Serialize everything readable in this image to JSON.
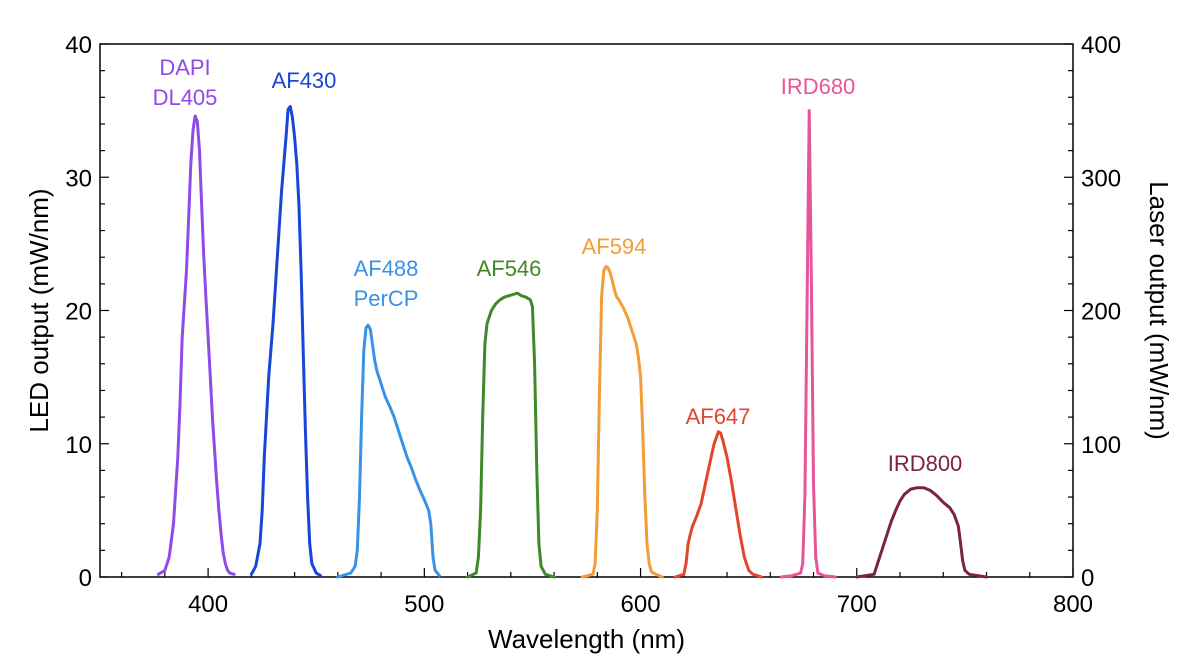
{
  "chart_data": {
    "type": "line",
    "xlabel": "Wavelength (nm)",
    "ylabel_left": "LED output (mW/nm)",
    "ylabel_right": "Laser output (mW/nm)",
    "xlim": [
      350,
      800
    ],
    "ylim_left": [
      0,
      40
    ],
    "ylim_right": [
      0,
      400
    ],
    "x_ticks": [
      "400",
      "500",
      "600",
      "700",
      "800"
    ],
    "y_ticks_left": [
      "0",
      "10",
      "20",
      "30",
      "40"
    ],
    "y_ticks_right": [
      "0",
      "100",
      "200",
      "300",
      "400"
    ],
    "grid": false,
    "legend": "none",
    "series": [
      {
        "name": "DAPI DL405",
        "label_lines": [
          "DAPI",
          "DL405"
        ],
        "color": "#8f4be8",
        "axis": "left",
        "points": [
          [
            377,
            0.2
          ],
          [
            380,
            0.5
          ],
          [
            382,
            1.5
          ],
          [
            384,
            4
          ],
          [
            386,
            9
          ],
          [
            387,
            13
          ],
          [
            388,
            18
          ],
          [
            390,
            23
          ],
          [
            391,
            27
          ],
          [
            392,
            31
          ],
          [
            393,
            33.5
          ],
          [
            394,
            34.6
          ],
          [
            395,
            34.2
          ],
          [
            396,
            32
          ],
          [
            397,
            28
          ],
          [
            398,
            24
          ],
          [
            399,
            21
          ],
          [
            400,
            18
          ],
          [
            401,
            15
          ],
          [
            402,
            12
          ],
          [
            403,
            9.5
          ],
          [
            404,
            7
          ],
          [
            405,
            5
          ],
          [
            406,
            3.2
          ],
          [
            407,
            1.8
          ],
          [
            408,
            1
          ],
          [
            409,
            0.5
          ],
          [
            410,
            0.3
          ],
          [
            412,
            0.2
          ]
        ]
      },
      {
        "name": "AF430",
        "label_lines": [
          "AF430"
        ],
        "color": "#1846d8",
        "axis": "left",
        "points": [
          [
            420,
            0.2
          ],
          [
            422,
            0.8
          ],
          [
            424,
            2.5
          ],
          [
            425,
            5
          ],
          [
            426,
            9
          ],
          [
            427,
            12
          ],
          [
            428,
            15
          ],
          [
            430,
            19
          ],
          [
            432,
            24
          ],
          [
            434,
            29
          ],
          [
            436,
            33
          ],
          [
            437,
            35.1
          ],
          [
            438,
            35.3
          ],
          [
            439,
            34.5
          ],
          [
            440,
            33
          ],
          [
            441,
            31
          ],
          [
            442,
            28
          ],
          [
            443,
            23
          ],
          [
            444,
            17
          ],
          [
            445,
            11
          ],
          [
            446,
            6
          ],
          [
            447,
            2.5
          ],
          [
            448,
            1
          ],
          [
            450,
            0.3
          ],
          [
            452,
            0.1
          ]
        ]
      },
      {
        "name": "AF488 PerCP",
        "label_lines": [
          "AF488",
          "PerCP"
        ],
        "color": "#3a92e6",
        "axis": "left",
        "points": [
          [
            460,
            0
          ],
          [
            466,
            0.3
          ],
          [
            468,
            0.8
          ],
          [
            469,
            2
          ],
          [
            470,
            6
          ],
          [
            471,
            12
          ],
          [
            472,
            17
          ],
          [
            473,
            18.7
          ],
          [
            474,
            18.9
          ],
          [
            475,
            18.6
          ],
          [
            476,
            17.5
          ],
          [
            477,
            16.3
          ],
          [
            478,
            15.5
          ],
          [
            480,
            14.5
          ],
          [
            482,
            13.5
          ],
          [
            484,
            12.8
          ],
          [
            486,
            12
          ],
          [
            488,
            11
          ],
          [
            490,
            10
          ],
          [
            492,
            9
          ],
          [
            494,
            8.2
          ],
          [
            496,
            7.3
          ],
          [
            498,
            6.5
          ],
          [
            500,
            5.8
          ],
          [
            502,
            5
          ],
          [
            503,
            4
          ],
          [
            504,
            1.5
          ],
          [
            505,
            0.5
          ],
          [
            507,
            0.1
          ]
        ]
      },
      {
        "name": "AF546",
        "label_lines": [
          "AF546"
        ],
        "color": "#3e8a2a",
        "axis": "left",
        "points": [
          [
            520,
            0
          ],
          [
            524,
            0.3
          ],
          [
            525,
            1.5
          ],
          [
            526,
            5
          ],
          [
            527,
            12
          ],
          [
            528,
            17.5
          ],
          [
            529,
            19
          ],
          [
            531,
            20
          ],
          [
            533,
            20.5
          ],
          [
            535,
            20.8
          ],
          [
            537,
            21
          ],
          [
            539,
            21.1
          ],
          [
            541,
            21.2
          ],
          [
            543,
            21.3
          ],
          [
            545,
            21.1
          ],
          [
            547,
            21
          ],
          [
            549,
            20.8
          ],
          [
            550,
            20.3
          ],
          [
            551,
            16
          ],
          [
            552,
            8
          ],
          [
            553,
            2.5
          ],
          [
            554,
            0.8
          ],
          [
            556,
            0.2
          ],
          [
            560,
            0
          ]
        ]
      },
      {
        "name": "AF594",
        "label_lines": [
          "AF594"
        ],
        "color": "#f29d38",
        "axis": "left",
        "points": [
          [
            573,
            0
          ],
          [
            578,
            0.2
          ],
          [
            579,
            1
          ],
          [
            580,
            5
          ],
          [
            581,
            14
          ],
          [
            582,
            21
          ],
          [
            583,
            23
          ],
          [
            584,
            23.3
          ],
          [
            585,
            23.2
          ],
          [
            586,
            22.8
          ],
          [
            587,
            22.2
          ],
          [
            588,
            21.5
          ],
          [
            589,
            21
          ],
          [
            590,
            20.8
          ],
          [
            592,
            20.2
          ],
          [
            594,
            19.5
          ],
          [
            596,
            18.5
          ],
          [
            598,
            17.5
          ],
          [
            599,
            16.5
          ],
          [
            600,
            15
          ],
          [
            601,
            11
          ],
          [
            602,
            6
          ],
          [
            603,
            2.5
          ],
          [
            604,
            1
          ],
          [
            605,
            0.4
          ],
          [
            607,
            0.2
          ],
          [
            610,
            0
          ]
        ]
      },
      {
        "name": "AF647",
        "label_lines": [
          "AF647"
        ],
        "color": "#e3452c",
        "axis": "left",
        "points": [
          [
            616,
            0
          ],
          [
            620,
            0.2
          ],
          [
            621,
            1
          ],
          [
            622,
            2.5
          ],
          [
            623,
            3.2
          ],
          [
            624,
            3.8
          ],
          [
            626,
            4.6
          ],
          [
            628,
            5.5
          ],
          [
            630,
            7
          ],
          [
            632,
            8.5
          ],
          [
            634,
            10
          ],
          [
            636,
            10.9
          ],
          [
            637,
            10.8
          ],
          [
            638,
            10.3
          ],
          [
            640,
            9
          ],
          [
            642,
            7.2
          ],
          [
            644,
            5.2
          ],
          [
            646,
            3.2
          ],
          [
            648,
            1.5
          ],
          [
            650,
            0.5
          ],
          [
            652,
            0.2
          ],
          [
            656,
            0
          ]
        ]
      },
      {
        "name": "IRD680",
        "label_lines": [
          "IRD680"
        ],
        "color": "#e8549a",
        "axis": "right",
        "points": [
          [
            665,
            0
          ],
          [
            670,
            1
          ],
          [
            674,
            3
          ],
          [
            675,
            10
          ],
          [
            676,
            60
          ],
          [
            677,
            200
          ],
          [
            678,
            350
          ],
          [
            679,
            220
          ],
          [
            680,
            70
          ],
          [
            681,
            15
          ],
          [
            682,
            3
          ],
          [
            685,
            1
          ],
          [
            690,
            0
          ]
        ]
      },
      {
        "name": "IRD800",
        "label_lines": [
          "IRD800"
        ],
        "color": "#7b2346",
        "axis": "left",
        "points": [
          [
            700,
            0
          ],
          [
            708,
            0.2
          ],
          [
            710,
            1.2
          ],
          [
            712,
            2.2
          ],
          [
            714,
            3.2
          ],
          [
            716,
            4.2
          ],
          [
            718,
            5
          ],
          [
            720,
            5.7
          ],
          [
            722,
            6.2
          ],
          [
            725,
            6.6
          ],
          [
            728,
            6.7
          ],
          [
            731,
            6.7
          ],
          [
            734,
            6.5
          ],
          [
            737,
            6.1
          ],
          [
            740,
            5.6
          ],
          [
            743,
            5.2
          ],
          [
            745,
            4.7
          ],
          [
            747,
            3.8
          ],
          [
            748,
            2.5
          ],
          [
            749,
            1.2
          ],
          [
            750,
            0.5
          ],
          [
            752,
            0.2
          ],
          [
            760,
            0
          ]
        ]
      }
    ]
  }
}
